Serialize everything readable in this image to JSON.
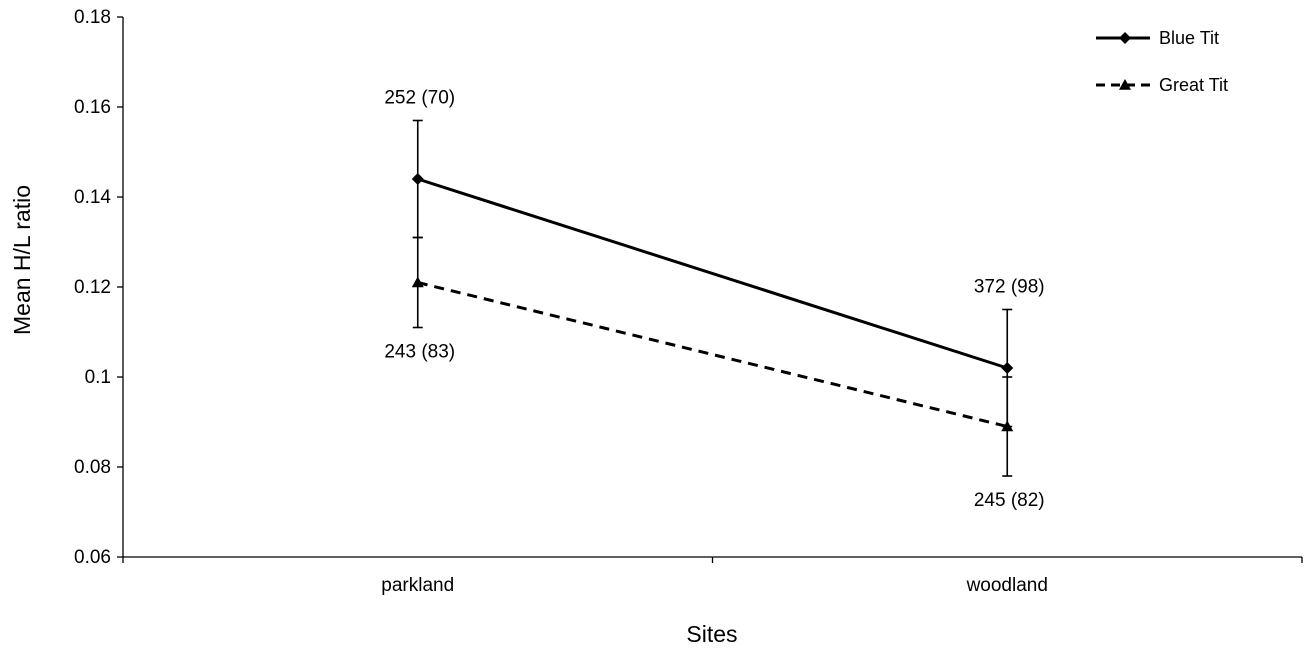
{
  "chart_data": {
    "type": "line",
    "title": "",
    "xlabel": "Sites",
    "ylabel": "Mean H/L ratio",
    "categories": [
      "parkland",
      "woodland"
    ],
    "ylim": [
      0.06,
      0.18
    ],
    "yticks": [
      "0.06",
      "0.08",
      "0.1",
      "0.12",
      "0.14",
      "0.16",
      "0.18"
    ],
    "grid": false,
    "legend_position": "top-right",
    "series": [
      {
        "name": "Blue Tit",
        "marker": "diamond",
        "line_style": "solid",
        "color": "#000000",
        "values": [
          0.144,
          0.102
        ],
        "error_upper": [
          0.157,
          0.115
        ],
        "error_lower": [
          0.131,
          0.089
        ],
        "labels": [
          "252 (70)",
          "372 (98)"
        ]
      },
      {
        "name": "Great Tit",
        "marker": "triangle",
        "line_style": "dashed",
        "color": "#000000",
        "values": [
          0.121,
          0.089
        ],
        "error_upper": [
          0.131,
          0.1
        ],
        "error_lower": [
          0.111,
          0.078
        ],
        "labels": [
          "243 (83)",
          "245 (82)"
        ]
      }
    ]
  }
}
